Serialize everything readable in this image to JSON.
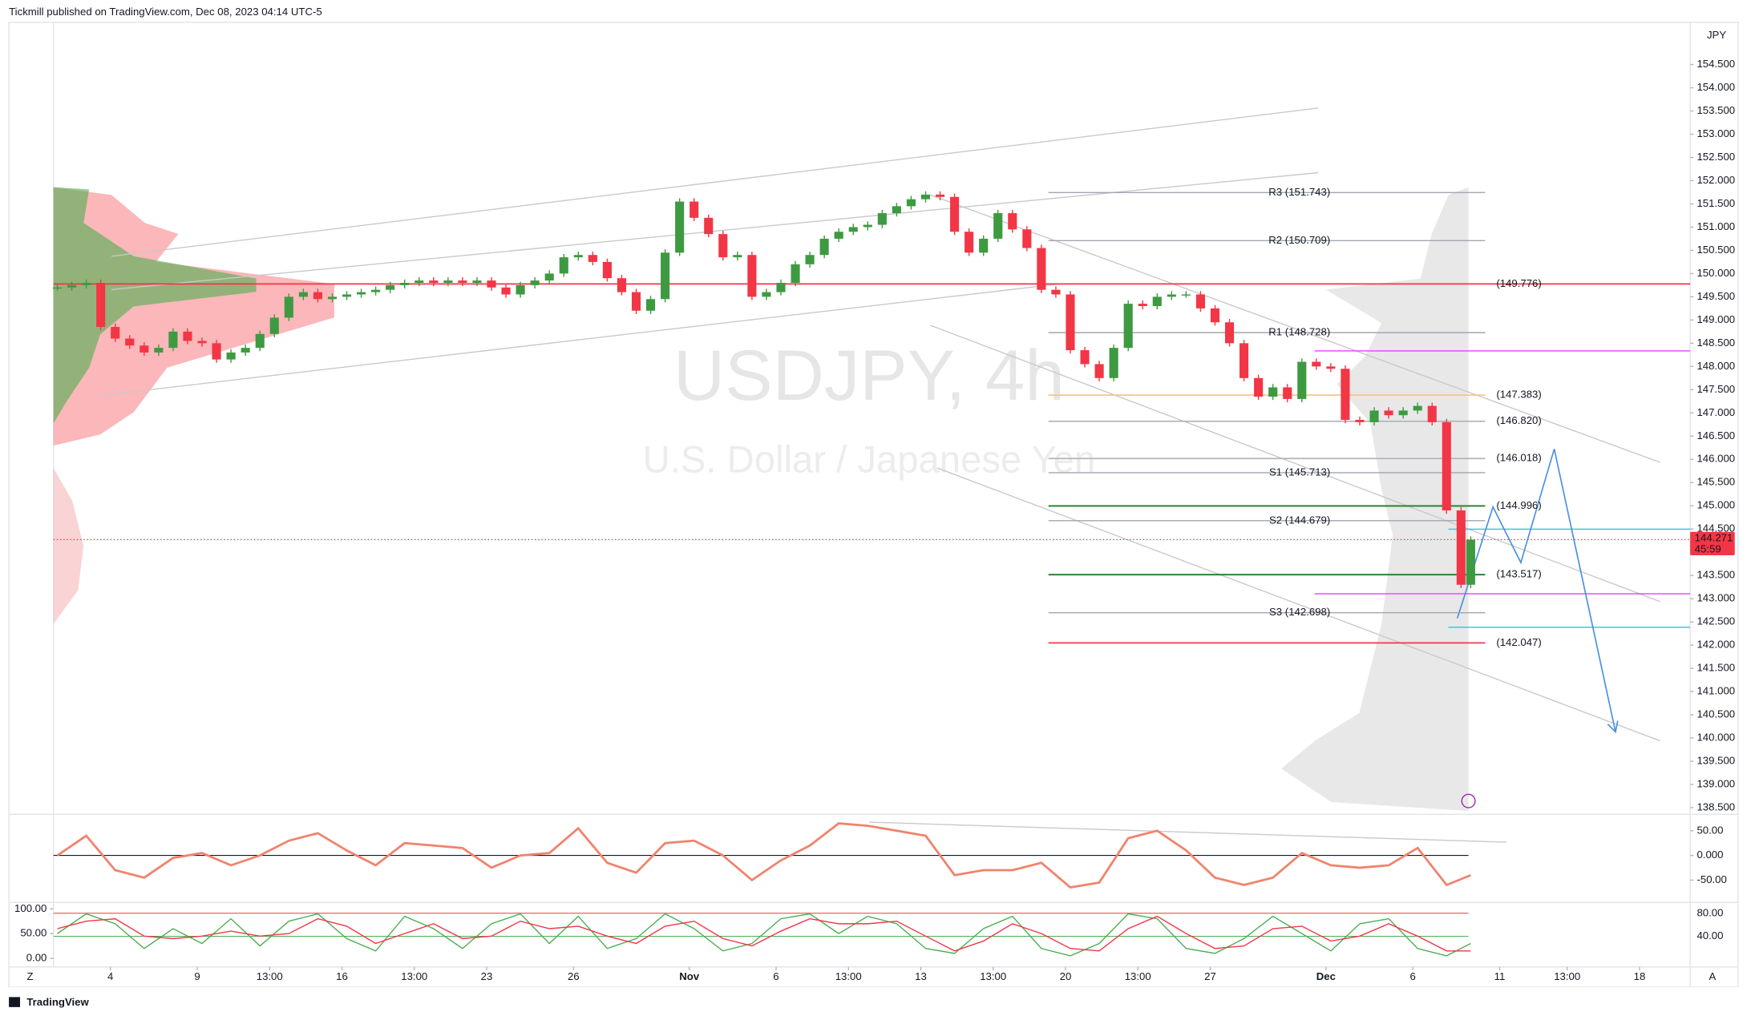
{
  "header": {
    "title": "Tickmill published on TradingView.com, Dec 08, 2023 04:14 UTC-5"
  },
  "footer": {
    "brand": "TradingView",
    "left_button": "Z",
    "right_button": "A"
  },
  "chart_data": [
    {
      "type": "candlestick",
      "title": "USDJPY, 4h",
      "subtitle": "U.S. Dollar / Japanese Yen",
      "currency": "JPY",
      "colors": {
        "up": "#3d9a41",
        "down": "#f23645"
      },
      "xlim": [
        -11.8,
        327.5
      ],
      "ylim": [
        138.38,
        155.41
      ],
      "yticks": [
        {
          "value": 138.5,
          "label": "138.500"
        },
        {
          "value": 139,
          "label": "139.000"
        },
        {
          "value": 139.5,
          "label": "139.500"
        },
        {
          "value": 140,
          "label": "140.000"
        },
        {
          "value": 140.5,
          "label": "140.500"
        },
        {
          "value": 141,
          "label": "141.000"
        },
        {
          "value": 141.5,
          "label": "141.500"
        },
        {
          "value": 142,
          "label": "142.000"
        },
        {
          "value": 142.5,
          "label": "142.500"
        },
        {
          "value": 143,
          "label": "143.000"
        },
        {
          "value": 143.5,
          "label": "143.500"
        },
        {
          "value": 144,
          "label": "144.000"
        },
        {
          "value": 144.5,
          "label": "144.500"
        },
        {
          "value": 145,
          "label": "145.000"
        },
        {
          "value": 145.5,
          "label": "145.500"
        },
        {
          "value": 146,
          "label": "146.000"
        },
        {
          "value": 146.5,
          "label": "146.500"
        },
        {
          "value": 147,
          "label": "147.000"
        },
        {
          "value": 147.5,
          "label": "147.500"
        },
        {
          "value": 148,
          "label": "148.000"
        },
        {
          "value": 148.5,
          "label": "148.500"
        },
        {
          "value": 149,
          "label": "149.000"
        },
        {
          "value": 149.5,
          "label": "149.500"
        },
        {
          "value": 150,
          "label": "150.000"
        },
        {
          "value": 150.5,
          "label": "150.500"
        },
        {
          "value": 151,
          "label": "151.000"
        },
        {
          "value": 151.5,
          "label": "151.500"
        },
        {
          "value": 152,
          "label": "152.000"
        },
        {
          "value": 152.5,
          "label": "152.500"
        },
        {
          "value": 153,
          "label": "153.000"
        },
        {
          "value": 153.5,
          "label": "153.500"
        },
        {
          "value": 154,
          "label": "154.000"
        },
        {
          "value": 154.5,
          "label": "154.500"
        }
      ],
      "x": [
        -11,
        -8,
        -5,
        -2,
        1,
        4,
        7,
        10,
        13,
        16,
        19,
        22,
        25,
        28,
        31,
        34,
        37,
        40,
        43,
        46,
        49,
        52,
        55,
        58,
        61,
        64,
        67,
        70,
        73,
        76,
        79,
        82,
        85,
        88,
        91,
        94,
        97,
        100,
        103,
        106,
        109,
        112,
        115,
        118,
        121,
        124,
        127,
        130,
        133,
        136,
        139,
        142,
        145,
        148,
        151,
        154,
        157,
        160,
        163,
        166,
        169,
        172,
        175,
        178,
        181,
        184,
        187,
        190,
        193,
        196,
        199,
        202,
        205,
        208,
        211,
        214,
        217,
        220,
        223,
        226,
        229,
        232,
        235,
        238,
        241,
        244,
        247,
        250,
        253,
        256,
        259,
        262,
        265,
        268,
        271,
        274,
        277,
        280,
        282
      ],
      "close": [
        149.7,
        149.75,
        149.8,
        148.85,
        148.6,
        148.45,
        148.3,
        148.4,
        148.75,
        148.55,
        148.5,
        148.15,
        148.3,
        148.4,
        148.7,
        149.05,
        149.5,
        149.6,
        149.45,
        149.5,
        149.55,
        149.6,
        149.65,
        149.75,
        149.8,
        149.85,
        149.8,
        149.85,
        149.8,
        149.85,
        149.7,
        149.55,
        149.75,
        149.85,
        150,
        150.35,
        150.4,
        150.25,
        149.9,
        149.6,
        149.2,
        149.45,
        150.45,
        151.55,
        151.2,
        150.85,
        150.35,
        150.4,
        149.5,
        149.6,
        149.8,
        150.2,
        150.4,
        150.75,
        150.9,
        151,
        151.05,
        151.3,
        151.45,
        151.6,
        151.7,
        151.65,
        150.9,
        150.45,
        150.75,
        151.3,
        150.95,
        150.55,
        149.65,
        149.55,
        148.35,
        148.05,
        147.75,
        148.4,
        149.35,
        149.3,
        149.5,
        149.55,
        149.55,
        149.25,
        148.95,
        148.5,
        147.75,
        147.35,
        147.55,
        147.3,
        148.1,
        148,
        147.95,
        146.85,
        146.8,
        147.05,
        146.95,
        147.05,
        147.15,
        146.8,
        144.9,
        143.3,
        144.271
      ],
      "last_price": 144.271,
      "countdown": "45:59",
      "pivots": [
        {
          "value": 151.743,
          "label": "R3 (151.743)"
        },
        {
          "value": 150.709,
          "label": "R2 (150.709)"
        },
        {
          "value": 148.728,
          "label": "R1 (148.728)"
        },
        {
          "value": 145.713,
          "label": "S1 (145.713)"
        },
        {
          "value": 144.679,
          "label": "S2 (144.679)"
        },
        {
          "value": 142.698,
          "label": "S3 (142.698)"
        }
      ],
      "levels": [
        {
          "value": 149.776,
          "label": "(149.776)",
          "color": "#f23645"
        },
        {
          "value": 147.383,
          "label": "(147.383)",
          "color": "#f7c58a"
        },
        {
          "value": 146.82,
          "label": "(146.820)",
          "color": "#b2b5be"
        },
        {
          "value": 146.018,
          "label": "(146.018)",
          "color": "#b2b5be"
        },
        {
          "value": 144.996,
          "label": "(144.996)",
          "color": "#1b7f2a"
        },
        {
          "value": 143.517,
          "label": "(143.517)",
          "color": "#1b7f2a"
        },
        {
          "value": 142.047,
          "label": "(142.047)",
          "color": "#f23645"
        }
      ]
    },
    {
      "type": "line",
      "xlim": [
        -11.8,
        327.5
      ],
      "ylim": [
        -92.9,
        81
      ],
      "yticks": [
        {
          "value": 50,
          "label": "50.00"
        },
        {
          "value": 0,
          "label": "0.000"
        },
        {
          "value": -50,
          "label": "-50.00"
        }
      ],
      "x": [
        -11,
        -5,
        1,
        7,
        13,
        19,
        25,
        31,
        37,
        43,
        49,
        55,
        61,
        67,
        73,
        79,
        85,
        91,
        97,
        103,
        109,
        115,
        121,
        127,
        133,
        139,
        145,
        151,
        157,
        163,
        169,
        175,
        181,
        187,
        193,
        199,
        205,
        211,
        217,
        223,
        229,
        235,
        241,
        247,
        253,
        259,
        265,
        271,
        277,
        282
      ],
      "series": [
        {
          "color": "#f0836d",
          "values": [
            0,
            40,
            -30,
            -45,
            -5,
            5,
            -20,
            0,
            30,
            45,
            10,
            -20,
            25,
            20,
            15,
            -25,
            0,
            5,
            55,
            -15,
            -35,
            25,
            30,
            0,
            -50,
            -10,
            20,
            65,
            60,
            50,
            40,
            -40,
            -30,
            -30,
            -15,
            -65,
            -55,
            35,
            50,
            10,
            -45,
            -60,
            -45,
            5,
            -20,
            -25,
            -20,
            15,
            -60,
            -40
          ]
        }
      ]
    },
    {
      "type": "line",
      "xlim": [
        -11.8,
        327.5
      ],
      "ylim": [
        -15.2,
        110.9
      ],
      "y2lim": [
        -11.4,
        97
      ],
      "yticks": [
        {
          "value": 100,
          "label": "100.00"
        },
        {
          "value": 50,
          "label": "50.00"
        },
        {
          "value": 0,
          "label": "0.00"
        }
      ],
      "y2ticks": [
        {
          "value": 80,
          "label": "80.00"
        },
        {
          "value": 40,
          "label": "40.00"
        }
      ],
      "xticks": [
        {
          "value": 0,
          "label": "4"
        },
        {
          "value": 18,
          "label": "9"
        },
        {
          "value": 33,
          "label": "13:00"
        },
        {
          "value": 48,
          "label": "16"
        },
        {
          "value": 63,
          "label": "13:00"
        },
        {
          "value": 78,
          "label": "23"
        },
        {
          "value": 96,
          "label": "26"
        },
        {
          "value": 120,
          "label": "Nov"
        },
        {
          "value": 138,
          "label": "6"
        },
        {
          "value": 153,
          "label": "13:00"
        },
        {
          "value": 168,
          "label": "13"
        },
        {
          "value": 183,
          "label": "13:00"
        },
        {
          "value": 198,
          "label": "20"
        },
        {
          "value": 213,
          "label": "13:00"
        },
        {
          "value": 228,
          "label": "27"
        },
        {
          "value": 252,
          "label": "Dec"
        },
        {
          "value": 270,
          "label": "6"
        },
        {
          "value": 288,
          "label": "11"
        },
        {
          "value": 302,
          "label": "13:00"
        },
        {
          "value": 317,
          "label": "18"
        }
      ],
      "x": [
        -11,
        -5,
        1,
        7,
        13,
        19,
        25,
        31,
        37,
        43,
        49,
        55,
        61,
        67,
        73,
        79,
        85,
        91,
        97,
        103,
        109,
        115,
        121,
        127,
        133,
        139,
        145,
        151,
        157,
        163,
        169,
        175,
        181,
        187,
        193,
        199,
        205,
        211,
        217,
        223,
        229,
        235,
        241,
        247,
        253,
        259,
        265,
        271,
        277,
        282
      ],
      "series": [
        {
          "color": "#4caf50",
          "values": [
            50,
            90,
            70,
            20,
            60,
            30,
            80,
            25,
            75,
            90,
            40,
            15,
            85,
            60,
            20,
            70,
            90,
            30,
            85,
            20,
            40,
            90,
            60,
            15,
            30,
            80,
            90,
            50,
            85,
            70,
            20,
            10,
            60,
            85,
            20,
            5,
            30,
            90,
            80,
            20,
            10,
            40,
            85,
            50,
            15,
            70,
            80,
            20,
            5,
            30
          ]
        },
        {
          "color": "#f23645",
          "values": [
            60,
            75,
            80,
            45,
            40,
            45,
            55,
            45,
            50,
            80,
            65,
            30,
            50,
            70,
            40,
            45,
            75,
            60,
            65,
            45,
            30,
            65,
            75,
            40,
            25,
            55,
            80,
            70,
            70,
            75,
            45,
            15,
            35,
            70,
            50,
            20,
            15,
            60,
            85,
            50,
            20,
            25,
            60,
            65,
            35,
            45,
            70,
            45,
            15,
            15
          ]
        }
      ]
    }
  ]
}
